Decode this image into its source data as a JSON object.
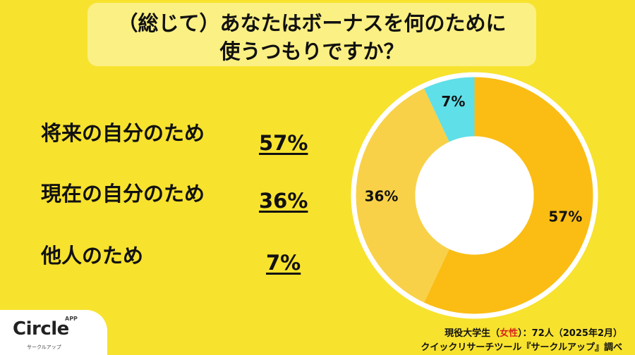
{
  "title": {
    "line1": "（総じて）あなたはボーナスを何のために",
    "line2": "使うつもりですか？"
  },
  "chart_data": {
    "type": "pie",
    "categories": [
      "将来の自分のため",
      "現在の自分のため",
      "他人のため"
    ],
    "values": [
      57,
      36,
      7
    ],
    "labels": [
      "57%",
      "36%",
      "7%"
    ],
    "colors": [
      "#fbbd14",
      "#f8d149",
      "#5fdfe8"
    ]
  },
  "rows": [
    {
      "label": "将来の自分のため",
      "value": "57%"
    },
    {
      "label": "現在の自分のため",
      "value": "36%"
    },
    {
      "label": "他人のため",
      "value": "7%"
    }
  ],
  "logo": {
    "name": "Circle",
    "badge": "APP",
    "sub": "サークルアップ"
  },
  "source": {
    "line1_pre": "現役大学生（",
    "line1_highlight": "女性",
    "line1_post": "）：72人（2025年2月）",
    "line2": "クイックリサーチツール『サークルアップ』調べ"
  }
}
